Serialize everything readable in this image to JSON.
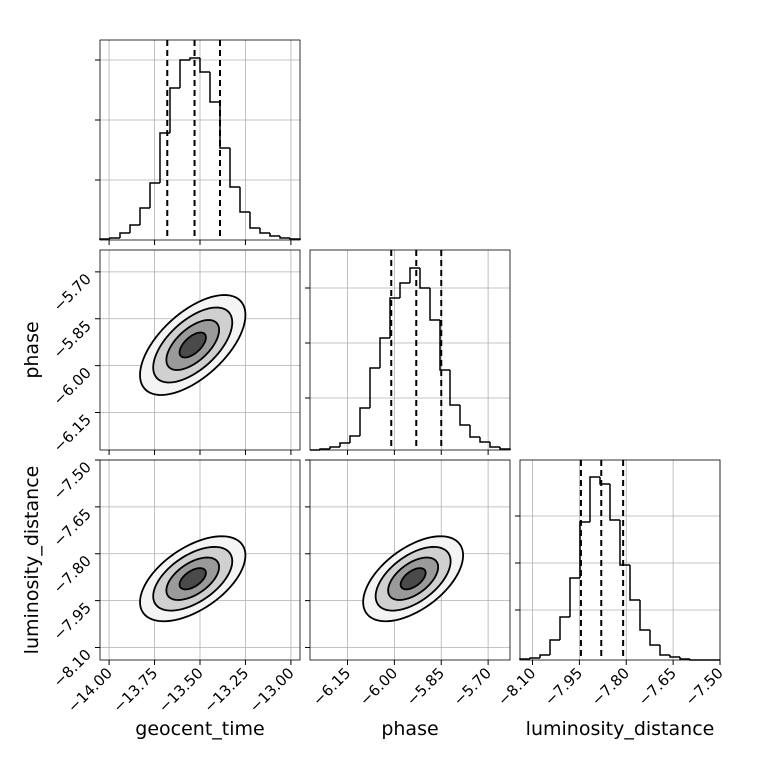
{
  "chart_data": [
    {
      "type": "hist",
      "bins": [
        -14.05,
        -13.995,
        -13.94,
        -13.885,
        -13.83,
        -13.775,
        -13.72,
        -13.665,
        -13.61,
        -13.555,
        -13.5,
        -13.445,
        -13.39,
        -13.335,
        -13.28,
        -13.225,
        -13.17,
        -13.115,
        -13.06,
        -13.005,
        -12.95
      ],
      "counts": [
        1,
        2,
        7,
        15,
        32,
        57,
        107,
        152,
        180,
        182,
        168,
        138,
        92,
        53,
        28,
        12,
        7,
        4,
        2,
        1
      ],
      "quantiles": [
        -13.68,
        -13.53,
        -13.39
      ],
      "color": "#000000",
      "xlim": [
        -14.05,
        -12.95
      ],
      "ylim": [
        0,
        200
      ],
      "xticks": [
        {
          "value": -14,
          "label": "−14.00"
        },
        {
          "value": -13.75,
          "label": "−13.75"
        },
        {
          "value": -13.5,
          "label": "−13.50"
        },
        {
          "value": -13.25,
          "label": "−13.25"
        },
        {
          "value": -13,
          "label": "−13.00"
        }
      ],
      "yticks": [
        60,
        120,
        180
      ],
      "show_xtick_labels": false,
      "grid": true
    },
    {
      "type": "contour",
      "mean": [
        -13.54,
        -5.934
      ],
      "std": [
        0.145,
        0.08
      ],
      "corr": 0.6,
      "levels": [
        2,
        1.5,
        1,
        0.5
      ],
      "xlim": [
        -14.05,
        -12.95
      ],
      "ylim": [
        -6.27,
        -5.63
      ],
      "xticks": [
        {
          "value": -14,
          "label": "−14.00"
        },
        {
          "value": -13.75,
          "label": "−13.75"
        },
        {
          "value": -13.5,
          "label": "−13.50"
        },
        {
          "value": -13.25,
          "label": "−13.25"
        },
        {
          "value": -13,
          "label": "−13.00"
        }
      ],
      "yticks": [
        {
          "value": -6.15,
          "label": "−6.15"
        },
        {
          "value": -6,
          "label": "−6.00"
        },
        {
          "value": -5.85,
          "label": "−5.85"
        },
        {
          "value": -5.7,
          "label": "−5.70"
        }
      ],
      "show_xtick_labels": false,
      "show_ytick_labels": true,
      "ylabel": "phase",
      "grid": true
    },
    {
      "type": "hist",
      "bins": [
        -6.27,
        -6.238,
        -6.206,
        -6.174,
        -6.142,
        -6.11,
        -6.078,
        -6.046,
        -6.014,
        -5.982,
        -5.95,
        -5.918,
        -5.886,
        -5.854,
        -5.822,
        -5.79,
        -5.758,
        -5.726,
        -5.694,
        -5.662,
        -5.63
      ],
      "counts": [
        0,
        1,
        3,
        7,
        14,
        42,
        82,
        112,
        152,
        167,
        182,
        162,
        130,
        80,
        45,
        25,
        13,
        8,
        3,
        1
      ],
      "quantiles": [
        -6.01,
        -5.93,
        -5.85
      ],
      "color": "#000000",
      "xlim": [
        -6.27,
        -5.63
      ],
      "ylim": [
        0,
        200
      ],
      "xticks": [
        {
          "value": -6.15,
          "label": "−6.15"
        },
        {
          "value": -6,
          "label": "−6.00"
        },
        {
          "value": -5.85,
          "label": "−5.85"
        },
        {
          "value": -5.7,
          "label": "−5.70"
        }
      ],
      "yticks": [
        52,
        107,
        162
      ],
      "show_xtick_labels": false,
      "grid": true
    },
    {
      "type": "contour",
      "mean": [
        -13.54,
        -7.88
      ],
      "std": [
        0.145,
        0.068
      ],
      "corr": 0.55,
      "levels": [
        2,
        1.5,
        1,
        0.5
      ],
      "xlim": [
        -14.05,
        -12.95
      ],
      "ylim": [
        -8.14,
        -7.5
      ],
      "xticks": [
        {
          "value": -14,
          "label": "−14.00"
        },
        {
          "value": -13.75,
          "label": "−13.75"
        },
        {
          "value": -13.5,
          "label": "−13.50"
        },
        {
          "value": -13.25,
          "label": "−13.25"
        },
        {
          "value": -13,
          "label": "−13.00"
        }
      ],
      "yticks": [
        {
          "value": -8.1,
          "label": "−8.10"
        },
        {
          "value": -7.95,
          "label": "−7.95"
        },
        {
          "value": -7.8,
          "label": "−7.80"
        },
        {
          "value": -7.65,
          "label": "−7.65"
        },
        {
          "value": -7.5,
          "label": "−7.50"
        }
      ],
      "show_xtick_labels": true,
      "show_ytick_labels": true,
      "xlabel": "geocent_time",
      "ylabel": "luminosity_distance",
      "grid": true
    },
    {
      "type": "contour",
      "mean": [
        -5.94,
        -7.88
      ],
      "std": [
        0.08,
        0.068
      ],
      "corr": 0.55,
      "levels": [
        2,
        1.5,
        1,
        0.5
      ],
      "xlim": [
        -6.27,
        -5.63
      ],
      "ylim": [
        -8.14,
        -7.5
      ],
      "xticks": [
        {
          "value": -6.15,
          "label": "−6.15"
        },
        {
          "value": -6,
          "label": "−6.00"
        },
        {
          "value": -5.85,
          "label": "−5.85"
        },
        {
          "value": -5.7,
          "label": "−5.70"
        }
      ],
      "yticks": [
        {
          "value": -8.1,
          "label": "−8.10"
        },
        {
          "value": -7.95,
          "label": "−7.95"
        },
        {
          "value": -7.8,
          "label": "−7.80"
        },
        {
          "value": -7.65,
          "label": "−7.65"
        },
        {
          "value": -7.5,
          "label": "−7.50"
        }
      ],
      "show_xtick_labels": true,
      "show_ytick_labels": false,
      "xlabel": "phase",
      "grid": true
    },
    {
      "type": "hist",
      "bins": [
        -8.14,
        -8.108,
        -8.076,
        -8.044,
        -8.012,
        -7.98,
        -7.948,
        -7.916,
        -7.884,
        -7.852,
        -7.82,
        -7.788,
        -7.756,
        -7.724,
        -7.692,
        -7.66,
        -7.628,
        -7.596,
        -7.564,
        -7.532,
        -7.5
      ],
      "counts": [
        1,
        2,
        5,
        20,
        43,
        82,
        138,
        183,
        176,
        140,
        95,
        60,
        30,
        15,
        5,
        3,
        1,
        0,
        0,
        0
      ],
      "quantiles": [
        -7.945,
        -7.88,
        -7.81
      ],
      "color": "#000000",
      "xlim": [
        -8.14,
        -7.5
      ],
      "ylim": [
        0,
        200
      ],
      "xticks": [
        {
          "value": -8.1,
          "label": "−8.10"
        },
        {
          "value": -7.95,
          "label": "−7.95"
        },
        {
          "value": -7.8,
          "label": "−7.80"
        },
        {
          "value": -7.65,
          "label": "−7.65"
        },
        {
          "value": -7.5,
          "label": "−7.50"
        }
      ],
      "yticks": [
        50,
        97,
        144
      ],
      "show_xtick_labels": true,
      "xlabel": "luminosity_distance",
      "grid": true
    }
  ]
}
